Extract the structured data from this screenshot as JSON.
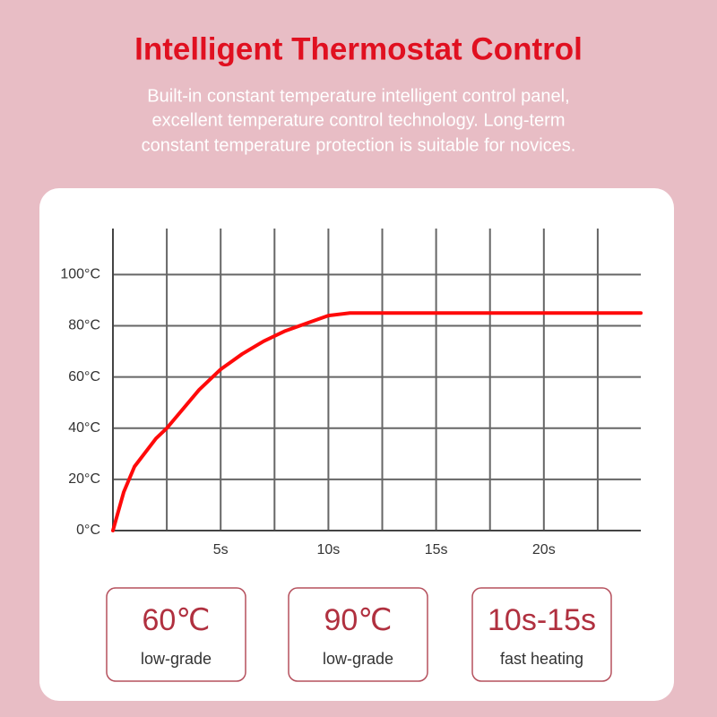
{
  "header": {
    "title": "Intelligent Thermostat Control",
    "subtitle": [
      "Built-in constant temperature intelligent control panel,",
      "excellent temperature control technology. Long-term",
      "constant temperature protection is suitable for novices."
    ]
  },
  "chart_data": {
    "type": "line",
    "x": [
      0,
      0.5,
      1,
      2,
      2.5,
      3,
      4,
      5,
      6,
      7,
      8,
      9,
      10,
      11,
      24.5
    ],
    "series": [
      {
        "color": "#ff0a0a",
        "values": [
          0,
          15,
          25,
          36,
          40,
          45,
          55,
          63,
          69,
          74,
          78,
          81,
          84,
          85,
          85
        ]
      }
    ],
    "xlim": [
      0,
      24.5
    ],
    "ylim": [
      0,
      118
    ],
    "xticks": [
      {
        "value": 5,
        "label": "5s"
      },
      {
        "value": 10,
        "label": "10s"
      },
      {
        "value": 15,
        "label": "15s"
      },
      {
        "value": 20,
        "label": "20s"
      }
    ],
    "xgrid": [
      2.5,
      5,
      7.5,
      10,
      12.5,
      15,
      17.5,
      20,
      22.5
    ],
    "yticks": [
      {
        "value": 0,
        "label": "0°C"
      },
      {
        "value": 20,
        "label": "20°C"
      },
      {
        "value": 40,
        "label": "40°C"
      },
      {
        "value": 60,
        "label": "60°C"
      },
      {
        "value": 80,
        "label": "80°C"
      },
      {
        "value": 100,
        "label": "100°C"
      }
    ],
    "grid": true
  },
  "cards": [
    {
      "value": "60℃",
      "label": "low-grade"
    },
    {
      "value": "90℃",
      "label": "low-grade"
    },
    {
      "value": "10s-15s",
      "label": "fast heating"
    }
  ]
}
